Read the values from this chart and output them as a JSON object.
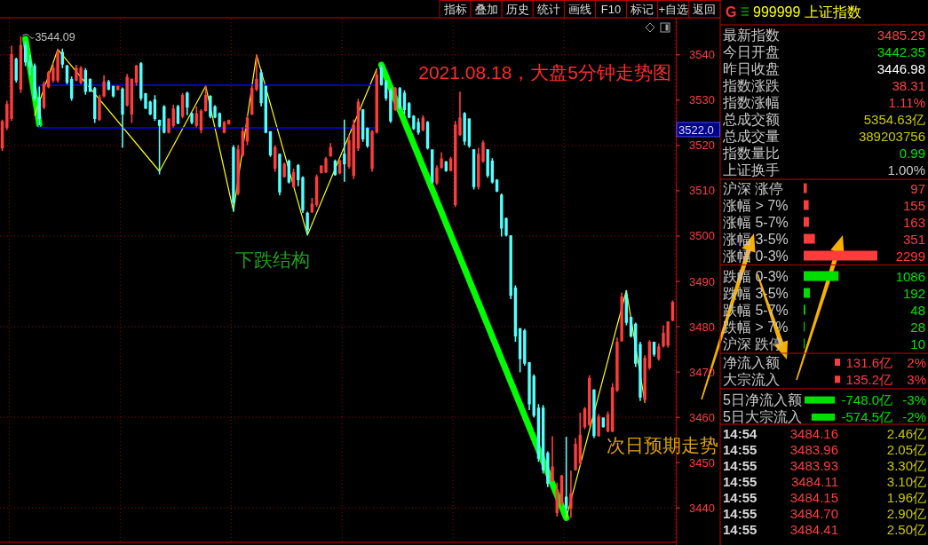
{
  "chart_data": [
    {
      "type": "candlestick",
      "title": "2021.08.18，大盘5分钟走势图",
      "categories": [
        null,
        null,
        null,
        null,
        null,
        null,
        null,
        null,
        null,
        null,
        null,
        null,
        null,
        null,
        null,
        null,
        null,
        null,
        null,
        null,
        null,
        null,
        null,
        null,
        null,
        null,
        null,
        null,
        null,
        null,
        null,
        null,
        null,
        null,
        null,
        null,
        null,
        null,
        null,
        null,
        null,
        null,
        null,
        null,
        null,
        null,
        null,
        null,
        null,
        null,
        null,
        null,
        null,
        null,
        null,
        null,
        null,
        null,
        null,
        null,
        null,
        null,
        null,
        null,
        null,
        null,
        null,
        null,
        null,
        null,
        null,
        null,
        null,
        null,
        null,
        null,
        null,
        null,
        null,
        null,
        null,
        null,
        null,
        null,
        null,
        null,
        null,
        null,
        null,
        null,
        null,
        null,
        null,
        null,
        null,
        null,
        null,
        null,
        null,
        null,
        null,
        null,
        null,
        null,
        null,
        null,
        null,
        null,
        null,
        null,
        null,
        null,
        null,
        null,
        null,
        null,
        null,
        null,
        null,
        null,
        null,
        null,
        null,
        null,
        null,
        null,
        null,
        null,
        null,
        null,
        null,
        null,
        null,
        null,
        null,
        null,
        null,
        null,
        null,
        null,
        null,
        null,
        null,
        null,
        null,
        null
      ],
      "ohlc": [
        [
          3519.5,
          3525.7,
          3518.8,
          3525.2
        ],
        [
          3524.0,
          3529.9,
          3523.4,
          3529.0
        ],
        [
          3526.0,
          3542.0,
          3525.4,
          3540.0
        ],
        [
          3539.0,
          3539.4,
          3533.9,
          3534.5
        ],
        [
          3532.5,
          3544.09,
          3531.6,
          3542.0
        ],
        [
          3542.0,
          3543.0,
          3537.5,
          3538.5
        ],
        [
          3538.5,
          3540.0,
          3535.5,
          3537.5
        ],
        [
          3537.5,
          3538.1,
          3529.9,
          3530.5
        ],
        [
          3530.5,
          3533.0,
          3524.5,
          3526.0
        ],
        [
          3528.5,
          3534.2,
          3528.0,
          3533.5
        ],
        [
          3533.0,
          3536.5,
          3532.6,
          3536.0
        ],
        [
          3534.5,
          3538.1,
          3533.9,
          3537.0
        ],
        [
          3534.5,
          3541.4,
          3533.9,
          3540.5
        ],
        [
          3540.5,
          3541.4,
          3537.1,
          3538.0
        ],
        [
          3537.5,
          3537.8,
          3533.5,
          3534.0
        ],
        [
          3534.5,
          3535.2,
          3529.9,
          3530.5
        ],
        [
          3534.5,
          3537.8,
          3534.2,
          3537.0
        ],
        [
          3534.0,
          3537.5,
          3533.5,
          3537.0
        ],
        [
          3536.5,
          3537.1,
          3531.2,
          3532.0
        ],
        [
          3534.5,
          3534.8,
          3531.9,
          3532.0
        ],
        [
          3532.5,
          3532.9,
          3525.0,
          3526.0
        ],
        [
          3525.8,
          3531.2,
          3525.4,
          3530.5
        ],
        [
          3531.0,
          3535.5,
          3530.6,
          3534.0
        ],
        [
          3534.0,
          3534.5,
          3532.2,
          3532.5
        ],
        [
          3533.0,
          3533.2,
          3530.6,
          3531.0
        ],
        [
          3532.4,
          3533.2,
          3532.2,
          3533.0
        ],
        [
          3532.4,
          3532.8,
          3519.5,
          3527.0
        ],
        [
          3529.0,
          3535.8,
          3528.6,
          3535.0
        ],
        [
          3527.0,
          3534.8,
          3525.0,
          3534.5
        ],
        [
          3534.0,
          3537.8,
          3533.2,
          3537.5
        ],
        [
          3538.0,
          3538.4,
          3529.9,
          3530.5
        ],
        [
          3531.4,
          3531.6,
          3528.0,
          3528.3
        ],
        [
          3529.5,
          3529.9,
          3526.7,
          3527.0
        ],
        [
          3530.0,
          3531.1,
          3525.4,
          3526.0
        ],
        [
          3525.5,
          3525.7,
          3513.6,
          3524.5
        ],
        [
          3528.5,
          3528.9,
          3522.7,
          3523.0
        ],
        [
          3523.0,
          3526.0,
          3522.7,
          3525.8
        ],
        [
          3524.5,
          3529.0,
          3524.0,
          3528.0
        ],
        [
          3528.5,
          3529.0,
          3524.7,
          3525.0
        ],
        [
          3526.5,
          3531.6,
          3526.0,
          3531.0
        ],
        [
          3531.5,
          3531.9,
          3526.7,
          3528.5
        ],
        [
          3527.0,
          3527.3,
          3524.7,
          3525.2
        ],
        [
          3524.5,
          3528.6,
          3524.0,
          3527.0
        ],
        [
          3523.5,
          3528.0,
          3522.7,
          3527.5
        ],
        [
          3527.8,
          3533.2,
          3527.5,
          3531.0
        ],
        [
          3530.8,
          3531.1,
          3526.0,
          3526.5
        ],
        [
          3528.5,
          3528.9,
          3526.0,
          3526.3
        ],
        [
          3527.0,
          3527.3,
          3524.0,
          3524.3
        ],
        [
          3523.0,
          3525.4,
          3522.7,
          3525.0
        ],
        [
          3524.8,
          3525.7,
          3524.7,
          3525.5
        ],
        [
          3519.5,
          3520.1,
          3505.4,
          3507.5
        ],
        [
          3509.5,
          3520.1,
          3509.0,
          3519.0
        ],
        [
          3518.0,
          3524.0,
          3517.5,
          3523.0
        ],
        [
          3521.0,
          3526.7,
          3520.1,
          3526.0
        ],
        [
          3527.0,
          3533.2,
          3526.7,
          3532.5
        ],
        [
          3532.5,
          3540.0,
          3532.0,
          3534.5
        ],
        [
          3536.0,
          3536.8,
          3528.6,
          3529.5
        ],
        [
          3533.0,
          3533.2,
          3522.7,
          3523.0
        ],
        [
          3523.0,
          3523.0,
          3517.5,
          3518.0
        ],
        [
          3515.0,
          3520.1,
          3514.2,
          3519.5
        ],
        [
          3518.0,
          3518.2,
          3509.0,
          3509.8
        ],
        [
          3513.2,
          3516.2,
          3512.9,
          3515.8
        ],
        [
          3516.5,
          3516.9,
          3511.6,
          3512.0
        ],
        [
          3511.0,
          3514.9,
          3510.7,
          3514.0
        ],
        [
          3515.5,
          3515.9,
          3511.0,
          3512.5
        ],
        [
          3512.8,
          3513.2,
          3505.1,
          3505.8
        ],
        [
          3505.0,
          3505.4,
          3500.2,
          3501.5
        ],
        [
          3505.4,
          3508.4,
          3505.1,
          3507.0
        ],
        [
          3507.0,
          3513.6,
          3506.4,
          3513.0
        ],
        [
          3514.0,
          3515.6,
          3513.9,
          3515.4
        ],
        [
          3514.2,
          3517.5,
          3513.9,
          3517.0
        ],
        [
          3517.8,
          3520.5,
          3517.5,
          3519.5
        ],
        [
          3516.5,
          3516.9,
          3513.3,
          3513.6
        ],
        [
          3514.0,
          3516.9,
          3513.6,
          3516.5
        ],
        [
          3518.0,
          3525.7,
          3512.0,
          3516.0
        ],
        [
          3515.5,
          3522.4,
          3514.9,
          3521.0
        ],
        [
          3513.5,
          3525.7,
          3512.6,
          3524.5
        ],
        [
          3519.5,
          3530.3,
          3518.8,
          3529.5
        ],
        [
          3527.8,
          3528.0,
          3520.8,
          3521.5
        ],
        [
          3523.7,
          3524.0,
          3519.5,
          3520.0
        ],
        [
          3515.0,
          3523.4,
          3514.2,
          3523.0
        ],
        [
          3523.0,
          3536.5,
          3522.7,
          3535.5
        ],
        [
          3537.0,
          3537.8,
          3533.2,
          3533.5
        ],
        [
          3534.0,
          3534.5,
          3529.9,
          3530.5
        ],
        [
          3532.0,
          3532.6,
          3525.0,
          3525.5
        ],
        [
          3528.0,
          3532.9,
          3527.6,
          3532.5
        ],
        [
          3532.5,
          3532.9,
          3528.0,
          3528.5
        ],
        [
          3531.5,
          3532.2,
          3527.0,
          3528.0
        ],
        [
          3529.2,
          3529.6,
          3526.0,
          3526.3
        ],
        [
          3526.4,
          3526.7,
          3523.4,
          3523.8
        ],
        [
          3525.0,
          3526.0,
          3522.4,
          3523.0
        ],
        [
          3523.5,
          3526.7,
          3523.1,
          3526.0
        ],
        [
          3525.0,
          3525.4,
          3519.1,
          3519.5
        ],
        [
          3519.0,
          3519.1,
          3511.6,
          3512.0
        ],
        [
          3511.8,
          3515.6,
          3511.3,
          3515.0
        ],
        [
          3515.2,
          3518.5,
          3514.9,
          3517.0
        ],
        [
          3516.3,
          3516.6,
          3514.2,
          3514.5
        ],
        [
          3514.5,
          3517.5,
          3514.3,
          3517.0
        ],
        [
          3507.0,
          3525.4,
          3506.4,
          3524.5
        ],
        [
          3522.5,
          3531.9,
          3522.1,
          3526.0
        ],
        [
          3527.0,
          3527.4,
          3520.1,
          3521.0
        ],
        [
          3525.8,
          3526.0,
          3519.5,
          3520.0
        ],
        [
          3519.0,
          3519.2,
          3510.3,
          3511.0
        ],
        [
          3511.0,
          3519.5,
          3510.3,
          3518.0
        ],
        [
          3516.6,
          3521.1,
          3516.2,
          3520.5
        ],
        [
          3519.0,
          3519.2,
          3512.9,
          3513.5
        ],
        [
          3516.5,
          3517.2,
          3511.6,
          3512.0
        ],
        [
          3512.3,
          3512.6,
          3509.7,
          3510.0
        ],
        [
          3509.0,
          3509.4,
          3499.9,
          3501.8
        ],
        [
          3503.8,
          3504.1,
          3499.9,
          3500.3
        ],
        [
          3500.0,
          3500.2,
          3486.1,
          3487.0
        ],
        [
          3488.5,
          3489.1,
          3476.7,
          3478.0
        ],
        [
          3479.5,
          3479.7,
          3469.9,
          3473.0
        ],
        [
          3479.0,
          3479.5,
          3471.4,
          3472.0
        ],
        [
          3472.0,
          3472.1,
          3461.6,
          3463.0
        ],
        [
          3469.0,
          3469.5,
          3460.0,
          3460.5
        ],
        [
          3462.0,
          3462.9,
          3450.2,
          3451.0
        ],
        [
          3462.0,
          3462.7,
          3447.6,
          3448.5
        ],
        [
          3452.0,
          3452.5,
          3444.6,
          3445.5
        ],
        [
          3446.0,
          3455.8,
          3445.9,
          3449.0
        ],
        [
          3439.0,
          3445.6,
          3438.1,
          3444.0
        ],
        [
          3441.0,
          3447.3,
          3440.4,
          3447.0
        ],
        [
          3442.35,
          3455.7,
          3438.8,
          3440.0
        ],
        [
          3440.0,
          3448.2,
          3437.8,
          3443.0
        ],
        [
          3448.5,
          3455.4,
          3448.2,
          3454.0
        ],
        [
          3450.0,
          3461.0,
          3449.5,
          3456.0
        ],
        [
          3458.0,
          3462.3,
          3457.4,
          3461.8
        ],
        [
          3458.5,
          3469.3,
          3458.0,
          3468.5
        ],
        [
          3466.0,
          3466.2,
          3455.4,
          3456.0
        ],
        [
          3456.0,
          3460.7,
          3455.7,
          3460.0
        ],
        [
          3459.8,
          3460.0,
          3457.7,
          3458.0
        ],
        [
          3457.0,
          3461.3,
          3456.7,
          3460.5
        ],
        [
          3457.0,
          3467.5,
          3456.7,
          3466.5
        ],
        [
          3466.0,
          3477.6,
          3465.6,
          3476.5
        ],
        [
          3477.0,
          3487.5,
          3476.7,
          3486.5
        ],
        [
          3487.0,
          3488.0,
          3480.3,
          3481.0
        ],
        [
          3482.0,
          3482.2,
          3477.6,
          3478.0
        ],
        [
          3480.5,
          3480.9,
          3471.1,
          3472.0
        ],
        [
          3476.0,
          3476.7,
          3463.6,
          3464.5
        ],
        [
          3464.0,
          3473.7,
          3463.5,
          3473.0
        ],
        [
          3471.0,
          3477.0,
          3470.5,
          3476.5
        ],
        [
          3476.5,
          3476.7,
          3473.4,
          3474.0
        ],
        [
          3473.0,
          3476.3,
          3472.5,
          3475.5
        ],
        [
          3475.8,
          3480.3,
          3475.4,
          3478.5
        ],
        [
          3476.0,
          3481.2,
          3475.4,
          3481.0
        ],
        [
          3481.5,
          3485.8,
          3481.2,
          3485.29
        ]
      ],
      "ylim": [
        3432.4,
        3548
      ],
      "yticks": [
        3440,
        3450,
        3460,
        3470,
        3480,
        3490,
        3500,
        3510,
        3520,
        3530,
        3540
      ],
      "series": [
        {
          "type": "line",
          "color": "#00ff00",
          "values": [
            null,
            null,
            null,
            null,
            null,
            3543.5,
            null,
            null,
            3524.7,
            null,
            null,
            null,
            null,
            null,
            null,
            null,
            null,
            null,
            null,
            null,
            null,
            null,
            null,
            null,
            null,
            null,
            null,
            null,
            null,
            null,
            null,
            null,
            null,
            null,
            null,
            null,
            null,
            null,
            null,
            null,
            null,
            null,
            null,
            null,
            null,
            null,
            null,
            null,
            null,
            null,
            null,
            null,
            null,
            null,
            null,
            null,
            null,
            null,
            null,
            null,
            null,
            null,
            null,
            null,
            null,
            null,
            null,
            null,
            null,
            null,
            null,
            null,
            null,
            null,
            null,
            null,
            null,
            null,
            null,
            null,
            null,
            null,
            null,
            null,
            null,
            null,
            null,
            null,
            null,
            null,
            null,
            null,
            null,
            null,
            null,
            null,
            null,
            null,
            null,
            null,
            null,
            null,
            null,
            null,
            null,
            null,
            null,
            null,
            null,
            null,
            null,
            null,
            null,
            null,
            null,
            null,
            null,
            null,
            null,
            null,
            null,
            null,
            null,
            null,
            null,
            null,
            null,
            null,
            null,
            null,
            null,
            null,
            null,
            null,
            null,
            null,
            null,
            null,
            null,
            null,
            null,
            null,
            null,
            null,
            null,
            null
          ]
        },
        {
          "type": "line",
          "color": "#00ff00",
          "values": [
            null,
            null,
            null,
            null,
            null,
            null,
            null,
            null,
            null,
            null,
            null,
            null,
            null,
            null,
            null,
            null,
            null,
            null,
            null,
            null,
            null,
            null,
            null,
            null,
            null,
            null,
            null,
            null,
            null,
            null,
            null,
            null,
            null,
            null,
            null,
            null,
            null,
            null,
            null,
            null,
            null,
            null,
            null,
            null,
            null,
            null,
            null,
            null,
            null,
            null,
            null,
            null,
            null,
            null,
            null,
            null,
            null,
            null,
            null,
            null,
            null,
            null,
            null,
            null,
            null,
            null,
            null,
            null,
            null,
            null,
            null,
            null,
            null,
            null,
            null,
            null,
            null,
            null,
            null,
            null,
            null,
            null,
            3537.8,
            null,
            null,
            null,
            null,
            null,
            null,
            null,
            null,
            null,
            null,
            null,
            null,
            null,
            null,
            null,
            null,
            null,
            null,
            null,
            null,
            null,
            null,
            null,
            null,
            null,
            null,
            null,
            null,
            null,
            null,
            null,
            null,
            null,
            null,
            null,
            null,
            null,
            null,
            null,
            3437.8,
            null,
            null,
            null,
            null,
            null,
            null,
            null,
            null,
            null,
            null,
            null,
            null,
            null,
            null,
            null,
            null,
            null,
            null,
            null,
            null,
            null,
            null,
            null
          ]
        },
        {
          "type": "line",
          "color": "#ffff00",
          "values": [
            null,
            null,
            null,
            null,
            null,
            null,
            null,
            3526.7,
            null,
            null,
            null,
            null,
            3541.2,
            null,
            null,
            null,
            null,
            null,
            null,
            null,
            null,
            null,
            null,
            null,
            null,
            null,
            null,
            null,
            null,
            null,
            null,
            null,
            null,
            null,
            3514.3,
            null,
            null,
            null,
            null,
            null,
            null,
            null,
            null,
            null,
            3533.1,
            null,
            null,
            null,
            null,
            null,
            3505.5,
            null,
            null,
            null,
            null,
            3540.0,
            null,
            null,
            null,
            null,
            null,
            null,
            null,
            null,
            null,
            null,
            3500.2,
            null,
            null,
            null,
            null,
            null,
            null,
            null,
            null,
            null,
            null,
            null,
            null,
            null,
            null,
            3536.9,
            null,
            null,
            null,
            null,
            null,
            null,
            null,
            null,
            null,
            null,
            null,
            null,
            null,
            null,
            null,
            null,
            null,
            null,
            null,
            null,
            null,
            null,
            null,
            null,
            null,
            null,
            null,
            null,
            null,
            null,
            null,
            null,
            null,
            null,
            null,
            null,
            null,
            null,
            null,
            null,
            null,
            null,
            null,
            null,
            null,
            null,
            null,
            null,
            null,
            null,
            null,
            null,
            null,
            null,
            null,
            null,
            null,
            null,
            null,
            null,
            null,
            null,
            null,
            null
          ]
        },
        {
          "type": "line",
          "color": "#ffff00",
          "values": [
            null,
            null,
            null,
            null,
            null,
            null,
            null,
            null,
            null,
            null,
            null,
            null,
            null,
            null,
            null,
            null,
            null,
            null,
            null,
            null,
            null,
            null,
            null,
            null,
            null,
            null,
            null,
            null,
            null,
            null,
            null,
            null,
            null,
            null,
            null,
            null,
            null,
            null,
            null,
            null,
            null,
            null,
            null,
            null,
            null,
            null,
            null,
            null,
            null,
            null,
            null,
            null,
            null,
            null,
            null,
            null,
            null,
            null,
            null,
            null,
            null,
            null,
            null,
            null,
            null,
            null,
            null,
            null,
            null,
            null,
            null,
            null,
            null,
            null,
            null,
            null,
            null,
            null,
            null,
            null,
            null,
            null,
            null,
            null,
            null,
            null,
            null,
            null,
            null,
            null,
            null,
            null,
            null,
            null,
            null,
            null,
            null,
            null,
            null,
            null,
            null,
            null,
            null,
            null,
            null,
            null,
            null,
            null,
            null,
            null,
            null,
            null,
            null,
            null,
            null,
            null,
            null,
            null,
            null,
            null,
            null,
            null,
            3437.8,
            null,
            null,
            null,
            null,
            null,
            null,
            null,
            null,
            null,
            null,
            null,
            null,
            3488.0,
            null,
            null,
            null,
            3463.3,
            null,
            null,
            null,
            null,
            null,
            null
          ]
        },
        {
          "type": "line",
          "color": "#0000ff",
          "values": [
            null,
            null,
            null,
            null,
            null,
            null,
            null,
            null,
            3533.3,
            null,
            null,
            null,
            null,
            null,
            null,
            null,
            null,
            null,
            null,
            null,
            null,
            null,
            null,
            null,
            null,
            null,
            null,
            null,
            null,
            null,
            null,
            null,
            null,
            null,
            null,
            null,
            null,
            null,
            null,
            null,
            null,
            null,
            null,
            null,
            null,
            null,
            null,
            null,
            null,
            null,
            null,
            null,
            null,
            null,
            null,
            null,
            null,
            null,
            null,
            null,
            null,
            null,
            null,
            null,
            null,
            null,
            null,
            null,
            null,
            null,
            null,
            null,
            null,
            null,
            null,
            null,
            null,
            null,
            null,
            null,
            null,
            3533.3,
            null,
            null,
            null,
            null,
            null,
            null,
            null,
            null,
            null,
            null,
            null,
            null,
            null,
            null,
            null,
            null,
            null,
            null,
            null,
            null,
            null,
            null,
            null,
            null,
            null,
            null,
            null,
            null,
            null,
            null,
            null,
            null,
            null,
            null,
            null,
            null,
            null,
            null,
            null,
            null,
            null,
            null,
            null,
            null,
            null,
            null,
            null,
            null,
            null,
            null,
            null,
            null,
            null,
            null,
            null,
            null,
            null,
            null,
            null,
            null,
            null,
            null,
            null,
            null
          ]
        },
        {
          "type": "line",
          "color": "#0000ff",
          "values": [
            null,
            null,
            null,
            null,
            null,
            null,
            null,
            null,
            3523.9,
            null,
            null,
            null,
            null,
            null,
            null,
            null,
            null,
            null,
            null,
            null,
            null,
            null,
            null,
            null,
            null,
            null,
            null,
            null,
            null,
            null,
            null,
            null,
            null,
            null,
            null,
            null,
            null,
            null,
            null,
            null,
            null,
            null,
            null,
            null,
            null,
            null,
            null,
            null,
            null,
            null,
            null,
            null,
            null,
            null,
            null,
            null,
            null,
            null,
            null,
            null,
            null,
            null,
            null,
            null,
            null,
            null,
            null,
            null,
            null,
            null,
            null,
            null,
            null,
            null,
            null,
            null,
            null,
            null,
            null,
            null,
            null,
            3523.9,
            null,
            null,
            null,
            null,
            null,
            null,
            null,
            null,
            null,
            null,
            null,
            null,
            null,
            null,
            null,
            null,
            null,
            null,
            null,
            null,
            null,
            null,
            null,
            null,
            null,
            null,
            null,
            null,
            null,
            null,
            null,
            null,
            null,
            null,
            null,
            null,
            null,
            null,
            null,
            null,
            null,
            null,
            null,
            null,
            null,
            null,
            null,
            null,
            null,
            null,
            null,
            null,
            null,
            null,
            null,
            null,
            null,
            null,
            null,
            null,
            null,
            null,
            null,
            null
          ]
        }
      ],
      "ref_lines": [
        {
          "axis": "y",
          "value": 3440,
          "color": "#9a0000",
          "line_style": "dotted"
        },
        {
          "axis": "y",
          "value": 3460,
          "color": "#9a0000",
          "line_style": "dotted"
        },
        {
          "axis": "y",
          "value": 3480,
          "color": "#9a0000",
          "line_style": "dotted"
        },
        {
          "axis": "y",
          "value": 3500,
          "color": "#9a0000",
          "line_style": "dotted"
        },
        {
          "axis": "y",
          "value": 3520,
          "color": "#9a0000",
          "line_style": "dotted"
        },
        {
          "axis": "y",
          "value": 3540,
          "color": "#9a0000",
          "line_style": "dotted"
        }
      ],
      "annotations": [
        "下跌结构",
        "次日预期走势",
        "3544.09",
        "3522.0"
      ]
    },
    {
      "type": "other",
      "annotations": [
        "指标",
        "叠加",
        "历史",
        "统计",
        "画线",
        "F10",
        "标记",
        "+自选",
        "返回"
      ]
    },
    {
      "type": "other",
      "title": "999999 上证指数",
      "annotations": [
        "G",
        "最新指数",
        "3485.29",
        "今日开盘",
        "3442.35",
        "昨日收盘",
        "3446.98",
        "指数涨跌",
        "38.31",
        "指数涨幅",
        "1.11%",
        "总成交额",
        "5354.63亿",
        "总成交量",
        "389203756",
        "指数量比",
        "0.99",
        "上证换手",
        "1.00%"
      ],
      "colors": [
        "#ff3030",
        "#c8c8c8",
        "#ff4040",
        "#c8c8c8",
        "#00e000",
        "#c8c8c8",
        "#ffffff",
        "#c8c8c8",
        "#ff4040",
        "#c8c8c8",
        "#ff4040",
        "#c8c8c8",
        "#c8c800",
        "#c8c8c8",
        "#c8c800",
        "#c8c8c8",
        "#00e000",
        "#c8c8c8",
        "#c8c8c8"
      ]
    },
    {
      "type": "bar",
      "orientation": "horizontal",
      "categories": [
        "沪深 涨停",
        "涨幅 > 7%",
        "涨幅 5-7%",
        "涨幅 3-5%",
        "涨幅 0-3%",
        "跌幅 0-3%",
        "跌幅 3-5%",
        "跌幅 5-7%",
        "跌幅 > 7%",
        "沪深 跌停"
      ],
      "values": [
        97,
        155,
        163,
        351,
        2299,
        1086,
        192,
        48,
        28,
        10
      ],
      "colors": [
        "#ff3c3c",
        "#ff3c3c",
        "#ff3c3c",
        "#ff3c3c",
        "#ff3c3c",
        "#00e000",
        "#00e000",
        "#00e000",
        "#00e000",
        "#00e000"
      ],
      "data_labels": true
    },
    {
      "type": "bar",
      "orientation": "horizontal",
      "categories": [
        "净流入额",
        "大宗流入",
        "5日净流入额",
        "5日大宗流入"
      ],
      "values": [
        131.6,
        135.2,
        -748.0,
        -574.5
      ],
      "colors": [
        "#ff3c3c",
        "#ff3c3c",
        "#00e000",
        "#00e000"
      ],
      "value_labels": [
        "131.6亿",
        "135.2亿",
        "-748.0亿",
        "-574.5亿"
      ],
      "annotations": [
        "2%",
        "3%",
        "-3%",
        "-2%"
      ]
    },
    {
      "type": "other",
      "annotations": [
        "14:54",
        "3484.16",
        "2.46亿",
        "14:55",
        "3483.96",
        "2.05亿",
        "14:55",
        "3483.93",
        "3.30亿",
        "14:55",
        "3484.11",
        "3.10亿",
        "14:55",
        "3484.15",
        "1.96亿",
        "14:55",
        "3484.70",
        "2.90亿",
        "14:55",
        "3484.41",
        "2.50亿"
      ],
      "colors": [
        "#d8d8d8",
        "#ff3c3c",
        "#c8c800",
        "#d8d8d8",
        "#ff3c3c",
        "#c8c800",
        "#d8d8d8",
        "#ff3c3c",
        "#c8c800",
        "#d8d8d8",
        "#ff3c3c",
        "#c8c800",
        "#d8d8d8",
        "#ff3c3c",
        "#c8c800",
        "#d8d8d8",
        "#ff3c3c",
        "#c8c800",
        "#d8d8d8",
        "#ff3c3c",
        "#c8c800"
      ]
    }
  ]
}
